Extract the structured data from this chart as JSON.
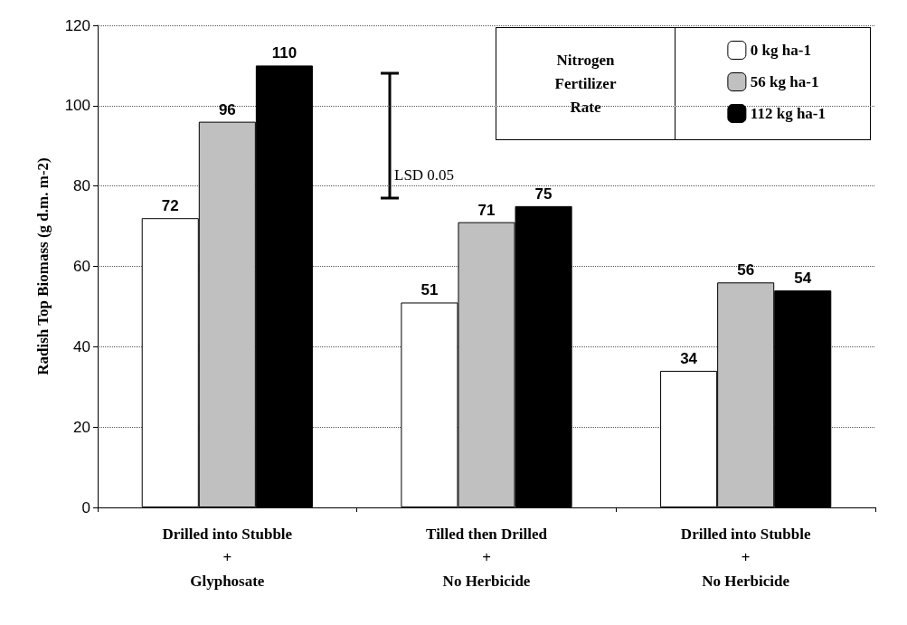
{
  "chart_data": {
    "type": "bar",
    "ylabel": "Radish Top Biomass (g d.m. m-2)",
    "legend_title": "Nitrogen Fertilizer Rate",
    "categories": [
      "Drilled into Stubble\n+\nGlyphosate",
      "Tilled then Drilled\n+\nNo Herbicide",
      "Drilled into Stubble\n+\nNo Herbicide"
    ],
    "series": [
      {
        "name": "0 kg ha-1",
        "color": "#ffffff",
        "values": [
          72,
          51,
          34
        ]
      },
      {
        "name": "56 kg ha-1",
        "color": "#c0c0c0",
        "values": [
          96,
          71,
          56
        ]
      },
      {
        "name": "112 kg ha-1",
        "color": "#000000",
        "values": [
          110,
          75,
          54
        ]
      }
    ],
    "ylim": [
      0,
      120
    ],
    "yticks": [
      0,
      20,
      40,
      60,
      80,
      100,
      120
    ],
    "grid": "y",
    "legend": "top right",
    "data_labels": true,
    "annotations": [
      "LSD 0.05"
    ]
  }
}
